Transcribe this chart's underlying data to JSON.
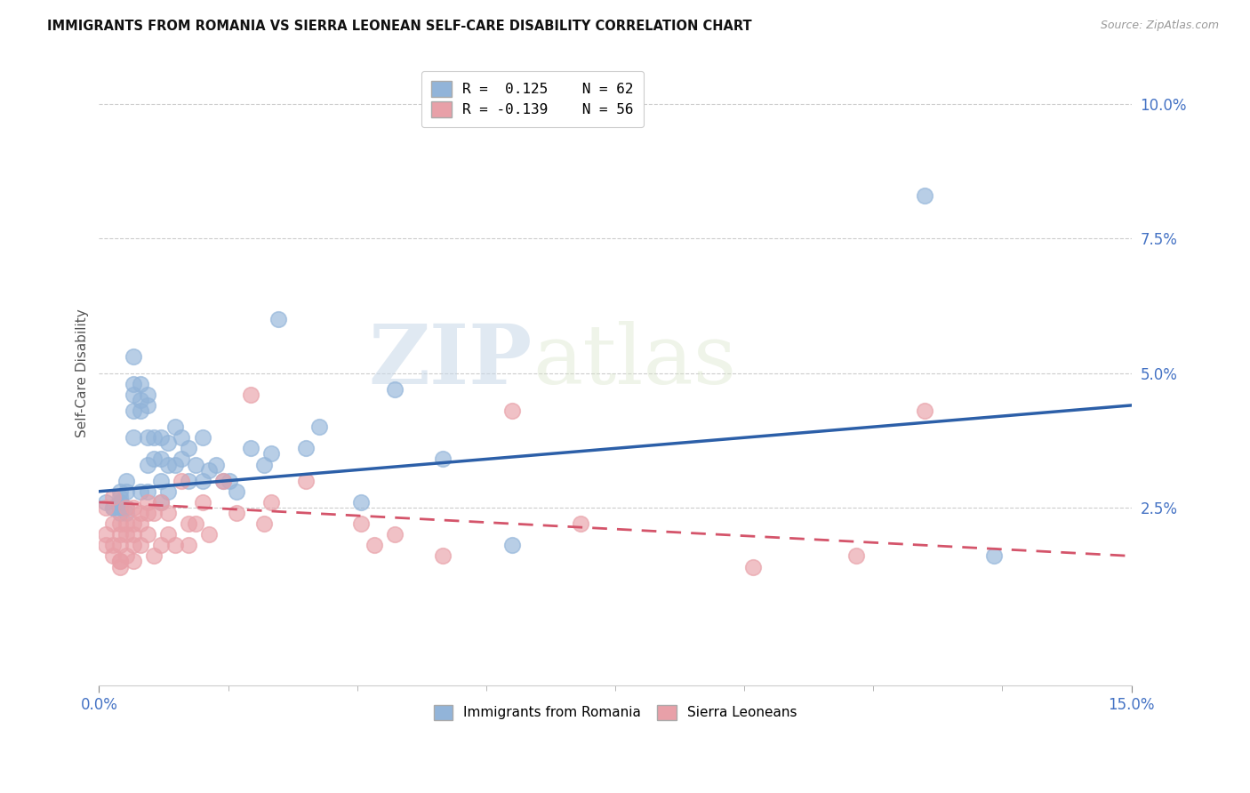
{
  "title": "IMMIGRANTS FROM ROMANIA VS SIERRA LEONEAN SELF-CARE DISABILITY CORRELATION CHART",
  "source": "Source: ZipAtlas.com",
  "ylabel": "Self-Care Disability",
  "xlim": [
    0,
    0.15
  ],
  "ylim": [
    -0.008,
    0.108
  ],
  "ytick_pos": [
    0.025,
    0.05,
    0.075,
    0.1
  ],
  "ytick_labels": [
    "2.5%",
    "5.0%",
    "7.5%",
    "10.0%"
  ],
  "blue_R": 0.125,
  "blue_N": 62,
  "pink_R": -0.139,
  "pink_N": 56,
  "blue_color": "#92b4d9",
  "pink_color": "#e8a0a8",
  "blue_line_color": "#2c5fa8",
  "pink_line_color": "#d4546a",
  "watermark_zip": "ZIP",
  "watermark_atlas": "atlas",
  "legend_label_blue": "Immigrants from Romania",
  "legend_label_pink": "Sierra Leoneans",
  "blue_x": [
    0.001,
    0.002,
    0.002,
    0.003,
    0.003,
    0.003,
    0.003,
    0.003,
    0.003,
    0.004,
    0.004,
    0.004,
    0.004,
    0.005,
    0.005,
    0.005,
    0.005,
    0.005,
    0.006,
    0.006,
    0.006,
    0.006,
    0.007,
    0.007,
    0.007,
    0.007,
    0.007,
    0.008,
    0.008,
    0.009,
    0.009,
    0.009,
    0.009,
    0.01,
    0.01,
    0.01,
    0.011,
    0.011,
    0.012,
    0.012,
    0.013,
    0.013,
    0.014,
    0.015,
    0.015,
    0.016,
    0.017,
    0.018,
    0.019,
    0.02,
    0.022,
    0.024,
    0.025,
    0.026,
    0.03,
    0.032,
    0.038,
    0.043,
    0.05,
    0.06,
    0.12,
    0.13
  ],
  "blue_y": [
    0.026,
    0.025,
    0.025,
    0.027,
    0.026,
    0.025,
    0.028,
    0.026,
    0.024,
    0.03,
    0.028,
    0.025,
    0.024,
    0.053,
    0.048,
    0.046,
    0.043,
    0.038,
    0.048,
    0.045,
    0.043,
    0.028,
    0.046,
    0.044,
    0.038,
    0.033,
    0.028,
    0.038,
    0.034,
    0.038,
    0.034,
    0.03,
    0.026,
    0.037,
    0.033,
    0.028,
    0.04,
    0.033,
    0.038,
    0.034,
    0.036,
    0.03,
    0.033,
    0.038,
    0.03,
    0.032,
    0.033,
    0.03,
    0.03,
    0.028,
    0.036,
    0.033,
    0.035,
    0.06,
    0.036,
    0.04,
    0.026,
    0.047,
    0.034,
    0.018,
    0.083,
    0.016
  ],
  "pink_x": [
    0.001,
    0.001,
    0.001,
    0.002,
    0.002,
    0.002,
    0.002,
    0.003,
    0.003,
    0.003,
    0.003,
    0.003,
    0.003,
    0.004,
    0.004,
    0.004,
    0.004,
    0.005,
    0.005,
    0.005,
    0.005,
    0.005,
    0.006,
    0.006,
    0.006,
    0.007,
    0.007,
    0.007,
    0.008,
    0.008,
    0.009,
    0.009,
    0.01,
    0.01,
    0.011,
    0.012,
    0.013,
    0.013,
    0.014,
    0.015,
    0.016,
    0.018,
    0.02,
    0.022,
    0.024,
    0.025,
    0.03,
    0.038,
    0.04,
    0.043,
    0.05,
    0.06,
    0.07,
    0.095,
    0.11,
    0.12
  ],
  "pink_y": [
    0.025,
    0.02,
    0.018,
    0.027,
    0.022,
    0.018,
    0.016,
    0.022,
    0.02,
    0.018,
    0.015,
    0.015,
    0.014,
    0.025,
    0.022,
    0.02,
    0.016,
    0.025,
    0.022,
    0.02,
    0.018,
    0.015,
    0.024,
    0.022,
    0.018,
    0.026,
    0.024,
    0.02,
    0.024,
    0.016,
    0.026,
    0.018,
    0.024,
    0.02,
    0.018,
    0.03,
    0.022,
    0.018,
    0.022,
    0.026,
    0.02,
    0.03,
    0.024,
    0.046,
    0.022,
    0.026,
    0.03,
    0.022,
    0.018,
    0.02,
    0.016,
    0.043,
    0.022,
    0.014,
    0.016,
    0.043
  ],
  "blue_trend": [
    0.0,
    0.15,
    0.028,
    0.044
  ],
  "pink_trend": [
    0.0,
    0.15,
    0.026,
    0.016
  ]
}
